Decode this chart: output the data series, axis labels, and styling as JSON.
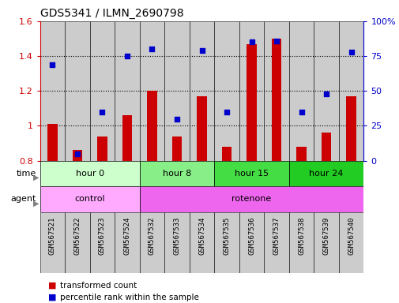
{
  "title": "GDS5341 / ILMN_2690798",
  "samples": [
    "GSM567521",
    "GSM567522",
    "GSM567523",
    "GSM567524",
    "GSM567532",
    "GSM567533",
    "GSM567534",
    "GSM567535",
    "GSM567536",
    "GSM567537",
    "GSM567538",
    "GSM567539",
    "GSM567540"
  ],
  "transformed_count": [
    1.01,
    0.86,
    0.94,
    1.06,
    1.2,
    0.94,
    1.17,
    0.88,
    1.47,
    1.5,
    0.88,
    0.96,
    1.17
  ],
  "percentile_rank": [
    69,
    5,
    35,
    75,
    80,
    30,
    79,
    35,
    85,
    86,
    35,
    48,
    78
  ],
  "bar_color": "#cc0000",
  "dot_color": "#0000cc",
  "ylim_left": [
    0.8,
    1.6
  ],
  "ylim_right": [
    0,
    100
  ],
  "yticks_left": [
    0.8,
    1.0,
    1.2,
    1.4,
    1.6
  ],
  "ytick_labels_left": [
    "0.8",
    "1",
    "1.2",
    "1.4",
    "1.6"
  ],
  "yticks_right": [
    0,
    25,
    50,
    75,
    100
  ],
  "ytick_labels_right": [
    "0",
    "25",
    "50",
    "75",
    "100%"
  ],
  "hgrid_at": [
    1.0,
    1.2,
    1.4
  ],
  "time_groups": [
    {
      "label": "hour 0",
      "start": 0,
      "end": 4,
      "color": "#ccffcc"
    },
    {
      "label": "hour 8",
      "start": 4,
      "end": 7,
      "color": "#88ee88"
    },
    {
      "label": "hour 15",
      "start": 7,
      "end": 10,
      "color": "#44dd44"
    },
    {
      "label": "hour 24",
      "start": 10,
      "end": 13,
      "color": "#22cc22"
    }
  ],
  "agent_groups": [
    {
      "label": "control",
      "start": 0,
      "end": 4,
      "color": "#ffaaff"
    },
    {
      "label": "rotenone",
      "start": 4,
      "end": 13,
      "color": "#ee66ee"
    }
  ],
  "sample_bg": "#cccccc",
  "plot_bg": "#ffffff",
  "bar_width": 0.4,
  "legend_items": [
    {
      "color": "#cc0000",
      "label": "transformed count"
    },
    {
      "color": "#0000cc",
      "label": "percentile rank within the sample"
    }
  ]
}
